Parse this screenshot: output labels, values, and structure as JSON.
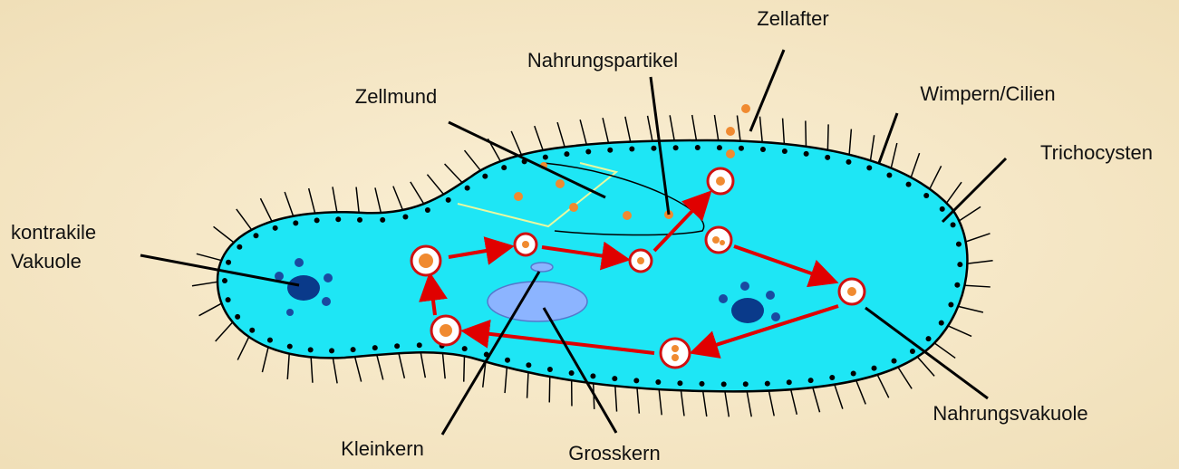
{
  "labels": [
    {
      "text": "Zellafter"
    },
    {
      "text": "Nahrungspartikel"
    },
    {
      "text": "Zellmund"
    },
    {
      "text": "Wimpern/Cilien"
    },
    {
      "text": "Trichocysten"
    },
    {
      "lines": [
        "kontrakile",
        "Vakuole"
      ]
    },
    {
      "text": "Nahrungsvakuole"
    },
    {
      "text": "Kleinkern"
    },
    {
      "text": "Grosskern"
    }
  ]
}
